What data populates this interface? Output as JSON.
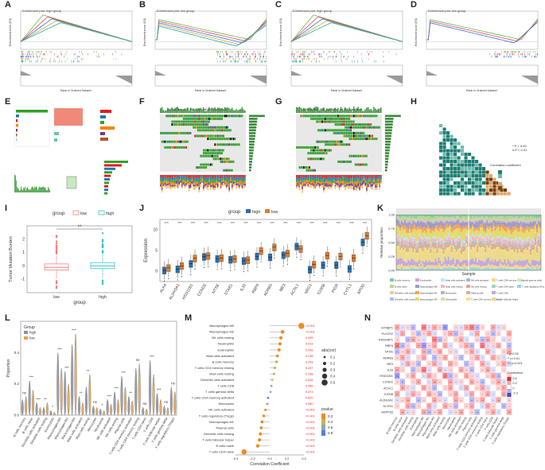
{
  "panels": {
    "A": {
      "label": "A",
      "title": "Enrichment plot: high group"
    },
    "B": {
      "label": "B",
      "title": "Enrichment plot: low group"
    },
    "C": {
      "label": "C",
      "title": "Enrichment plot: high group"
    },
    "D": {
      "label": "D",
      "title": "Enrichment plot: low group"
    },
    "E": {
      "label": "E"
    },
    "F": {
      "label": "F",
      "title": "Altered in 433 (88.73%) of 488 samples"
    },
    "G": {
      "label": "G",
      "title": "Altered in 428 (88.10%) of 486 samples"
    },
    "H": {
      "label": "H"
    },
    "I": {
      "label": "I"
    },
    "J": {
      "label": "J"
    },
    "K": {
      "label": "K"
    },
    "L": {
      "label": "L"
    },
    "M": {
      "label": "M"
    },
    "N": {
      "label": "N"
    }
  },
  "gsea": {
    "ylabel_top": "Enrichment score (ES)",
    "ylabel_bottom": "Ranked list metric",
    "xlabel": "Rank in Ordered Dataset",
    "colors": [
      "#6fb43f",
      "#e34a6f",
      "#3d6fd0",
      "#c8a83b",
      "#23a7a3"
    ]
  },
  "heatmap_H": {
    "legend_title": "Correlation coefficient",
    "p_legend": [
      "* P < 0.05",
      "# P < 0.01"
    ],
    "colors": [
      "#1e7d71",
      "#6fbcae",
      "#ffffff",
      "#dba86a",
      "#7a3f0b"
    ]
  },
  "chart_data": [
    {
      "type": "box",
      "panel": "I",
      "title": "",
      "legend_title": "group",
      "legend": [
        "low",
        "high"
      ],
      "categories": [
        "low",
        "high"
      ],
      "xlabel": "group",
      "ylabel": "Tumor Mutation Burden",
      "ylim": [
        -2,
        3
      ],
      "yticks": [
        "-1",
        "0",
        "1",
        "2"
      ],
      "significance": "**",
      "boxes": [
        {
          "name": "low",
          "q1": -0.3,
          "median": -0.1,
          "q3": 0.15,
          "whisker_low": -0.95,
          "whisker_high": 0.75
        },
        {
          "name": "high",
          "q1": -0.2,
          "median": 0.0,
          "q3": 0.25,
          "whisker_low": -0.85,
          "whisker_high": 0.9
        }
      ],
      "colors": [
        "#f08080",
        "#3cc3c9"
      ]
    },
    {
      "type": "box",
      "panel": "J",
      "legend_title": "group",
      "legend": [
        "high",
        "low"
      ],
      "colors": [
        "#2a6fb0",
        "#e07b29"
      ],
      "ylabel": "Expression",
      "ylim": [
        -2.5,
        12.5
      ],
      "yticks": [
        "0",
        "5",
        "10"
      ],
      "categories": [
        "ALK4",
        "ALDH3A1",
        "HSD11B1",
        "CCND2",
        "NTSE",
        "STAB1",
        "IL33",
        "RBP4",
        "ADRB3",
        "ME3",
        "ACSL1",
        "NRG1",
        "S100B",
        "PIGR",
        "CYTL1",
        "APOD"
      ],
      "significance": [
        "***",
        "***",
        "***",
        "***",
        "***",
        "***",
        "***",
        "***",
        "***",
        "***",
        "***",
        "***",
        "***",
        "***",
        "***",
        "***"
      ],
      "series": [
        {
          "name": "high",
          "medians": [
            0.2,
            0.5,
            1.8,
            3.5,
            3.0,
            2.8,
            2.5,
            3.6,
            3.4,
            3.9,
            6.0,
            0.4,
            1.5,
            1.5,
            0.6,
            7.0
          ]
        },
        {
          "name": "low",
          "medians": [
            0.8,
            1.3,
            3.1,
            3.7,
            3.2,
            3.0,
            2.7,
            4.9,
            5.8,
            4.3,
            5.4,
            1.6,
            3.8,
            3.6,
            3.2,
            8.6
          ]
        }
      ]
    },
    {
      "type": "area",
      "panel": "K",
      "title": "",
      "groups": [
        "high",
        "low"
      ],
      "xlabel": "Sample",
      "ylabel": "Relative proportion",
      "ylim": [
        0,
        1
      ],
      "yticks": [
        "0.00",
        "0.25",
        "0.50",
        "0.75",
        "1.00"
      ],
      "legend": [
        "B cells memory",
        "B cells naive",
        "Dendritic cells activated",
        "Dendritic cells resting",
        "Eosinophils",
        "Macrophages M0",
        "Macrophages M1",
        "Macrophages M2",
        "Mast cells activated",
        "Mast cells resting",
        "Monocytes",
        "Neutrophils",
        "NK cells activated",
        "NK cells resting",
        "Plasma cells",
        "T cells CD4 memory activated",
        "T cells CD4 memory resting",
        "T cells CD4 naive",
        "T cells CD8",
        "T cells follicular helper",
        "T cells gamma delta",
        "T cells regulatory (Tregs)"
      ],
      "colors": [
        "#7fc9a6",
        "#b8d88b",
        "#f4c7a1",
        "#a7c4e0",
        "#d8a1c9",
        "#9e9ac8",
        "#f2a35e",
        "#e6d96b",
        "#c1e3f0",
        "#f7b6c2",
        "#b7b7b7",
        "#cbe39b",
        "#8fc0e8",
        "#e8a2a2",
        "#d2b48c",
        "#f6e27f",
        "#eed98a",
        "#a0d6b4",
        "#c3a6e0",
        "#ffd27f",
        "#d7e8c2",
        "#9fd5d1"
      ]
    },
    {
      "type": "violin",
      "panel": "L",
      "legend_title": "Group",
      "legend": [
        "high",
        "low"
      ],
      "colors": [
        "#8a8fa3",
        "#e3a24c"
      ],
      "ylabel": "Proportion",
      "ylim": [
        0,
        0.6
      ],
      "yticks": [
        "0.0",
        "0.2",
        "0.4"
      ],
      "categories": [
        "B cells memory",
        "B cells naive",
        "Dendritic cells activated",
        "Dendritic cells resting",
        "Eosinophils",
        "Macrophages M0",
        "Macrophages M1",
        "Macrophages M2",
        "Mast cells activated",
        "Mast cells resting",
        "Monocytes",
        "Neutrophils",
        "NK cells activated",
        "NK cells resting",
        "Plasma cells",
        "T cells CD4 memory activated",
        "T cells CD4 memory resting",
        "T cells CD4 naive",
        "T cells CD8",
        "T cells follicular helper",
        "T cells gamma delta",
        "T cells regulatory (Tregs)"
      ],
      "significance": [
        "ns",
        "***",
        "***",
        "**",
        "*",
        "***",
        "***",
        "***",
        "**",
        "**",
        "ns",
        "*",
        "***",
        "***",
        "***",
        "**",
        "ns",
        "ns",
        "***",
        "***",
        "ns",
        "ns"
      ],
      "series": [
        {
          "name": "high",
          "heights": [
            0.1,
            0.22,
            0.08,
            0.05,
            0.03,
            0.4,
            0.28,
            0.45,
            0.12,
            0.18,
            0.06,
            0.04,
            0.1,
            0.15,
            0.25,
            0.12,
            0.3,
            0.05,
            0.35,
            0.14,
            0.06,
            0.18
          ]
        },
        {
          "name": "low",
          "heights": [
            0.12,
            0.16,
            0.05,
            0.08,
            0.02,
            0.3,
            0.2,
            0.52,
            0.08,
            0.26,
            0.05,
            0.03,
            0.07,
            0.1,
            0.18,
            0.09,
            0.33,
            0.04,
            0.26,
            0.1,
            0.05,
            0.15
          ]
        }
      ]
    },
    {
      "type": "scatter",
      "panel": "M",
      "xlabel": "Correlation Coefficient",
      "xlim": [
        -0.4,
        0.4
      ],
      "xticks": [
        "-0.4",
        "-0.2",
        "0.0",
        "0.2",
        "0.4"
      ],
      "size_legend_title": "abs(cor)",
      "size_legend": [
        "0.1",
        "0.2",
        "0.3",
        "0.4",
        "0.5"
      ],
      "color_legend_title": "pvalue",
      "color_legend": [
        "0.2",
        "0.4",
        "0.6",
        "0.8"
      ],
      "categories": [
        "Macrophages M0",
        "Macrophages M2",
        "NK cells resting",
        "Neutrophils",
        "Eosinophils",
        "Mast cells activated",
        "B cells memory",
        "T cells CD4 memory resting",
        "Mast cells resting",
        "Dendritic cells activated",
        "T cells CD8",
        "T cells gamma delta",
        "T cells CD4 memory activated",
        "Monocytes",
        "NK cells activated",
        "T cells regulatory (Tregs)",
        "Macrophages M1",
        "Plasma cells",
        "Dendritic cells resting",
        "T cells follicular helper",
        "B cells naive",
        "T cells CD4 naive"
      ],
      "values": [
        0.37,
        0.15,
        0.13,
        0.12,
        0.11,
        0.09,
        0.08,
        0.06,
        0.05,
        0.03,
        0.02,
        0.01,
        -0.02,
        -0.03,
        -0.05,
        -0.07,
        -0.09,
        -0.1,
        -0.11,
        -0.12,
        -0.14,
        -0.3
      ],
      "pvalue_labels": [
        "<0.001",
        "<0.001",
        "0.005",
        "0.013",
        "0.039",
        "0.136",
        "0.203",
        "0.247",
        "0.298",
        "0.316",
        "0.456",
        "0.573",
        "0.620",
        "0.580",
        "<0.001",
        "<0.001",
        "<0.001",
        "<0.001",
        "<0.001",
        "<0.001",
        "<0.001",
        "<0.001"
      ],
      "pvalue_numeric": [
        0.001,
        0.001,
        0.005,
        0.013,
        0.039,
        0.136,
        0.203,
        0.247,
        0.298,
        0.316,
        0.456,
        0.573,
        0.62,
        0.58,
        0.001,
        0.001,
        0.001,
        0.001,
        0.001,
        0.001,
        0.001,
        0.001
      ]
    },
    {
      "type": "heatmap",
      "panel": "N",
      "rows": [
        "SYNBP1",
        "FLVCR2",
        "RASGRP1",
        "RBP4",
        "NTSE",
        "ADRB3",
        "ME3",
        "IL33",
        "HSD11B1",
        "CCND2",
        "ACSL1",
        "S100B",
        "ALDH3A1",
        "ACSS1",
        "ADIPOQ"
      ],
      "columns": [
        "B cells memory",
        "B cells naive",
        "Dendritic cells activated",
        "Dendritic cells resting",
        "Eosinophils",
        "Macrophages M0",
        "Macrophages M1",
        "Macrophages M2",
        "Mast cells activated",
        "Mast cells resting",
        "Monocytes",
        "Neutrophils",
        "NK cells activated",
        "NK cells resting",
        "Plasma cells",
        "T cells CD4 memory activated",
        "T cells CD4 memory resting",
        "T cells CD4 naive",
        "T cells CD8",
        "T cells follicular helper",
        "T cells gamma delta",
        "T cells regulatory (Tregs)"
      ],
      "legend_title": "Correlation",
      "legend_ticks": [
        "0.6",
        "0.3",
        "0",
        "-0.3"
      ],
      "p_legend": [
        "* p<0.05",
        "** p<0.01",
        "*** p<0.001"
      ],
      "colors": [
        "#d7322c",
        "#f4a6a3",
        "#ffffff",
        "#aab3e6",
        "#3a4ed0"
      ],
      "values": [
        [
          0.2,
          -0.1,
          0.1,
          -0.2,
          0.0,
          0.3,
          -0.1,
          0.2,
          0.1,
          -0.3,
          0.0,
          0.1,
          -0.1,
          0.2,
          0.3,
          -0.2,
          0.1,
          0.0,
          0.2,
          -0.1,
          0.1,
          0.0
        ],
        [
          -0.1,
          0.2,
          0.0,
          0.1,
          -0.2,
          0.1,
          0.2,
          -0.1,
          0.0,
          0.1,
          0.2,
          -0.2,
          0.1,
          0.0,
          -0.1,
          0.2,
          0.0,
          0.1,
          -0.2,
          0.1,
          0.0,
          0.2
        ],
        [
          0.1,
          0.0,
          -0.2,
          0.2,
          0.1,
          -0.1,
          0.0,
          0.3,
          -0.2,
          0.1,
          0.0,
          0.1,
          0.2,
          -0.1,
          0.0,
          0.1,
          -0.2,
          0.2,
          0.1,
          0.0,
          -0.1,
          0.1
        ],
        [
          0.3,
          -0.2,
          0.1,
          0.0,
          0.2,
          -0.3,
          0.1,
          0.2,
          0.0,
          0.2,
          -0.1,
          0.0,
          0.1,
          0.2,
          -0.2,
          0.0,
          0.3,
          -0.1,
          0.1,
          0.2,
          0.0,
          -0.2
        ],
        [
          -0.2,
          0.1,
          0.2,
          -0.1,
          0.0,
          0.2,
          -0.2,
          0.1,
          0.2,
          0.0,
          0.1,
          -0.1,
          0.0,
          0.1,
          0.2,
          -0.1,
          0.0,
          0.2,
          -0.1,
          0.0,
          0.1,
          0.2
        ],
        [
          0.1,
          0.2,
          -0.1,
          0.0,
          0.1,
          0.2,
          0.0,
          -0.2,
          0.1,
          0.2,
          0.0,
          0.1,
          -0.2,
          0.0,
          0.1,
          0.2,
          -0.1,
          0.0,
          0.2,
          0.1,
          -0.1,
          0.0
        ],
        [
          0.0,
          -0.1,
          0.2,
          0.1,
          -0.2,
          0.0,
          0.1,
          0.2,
          -0.1,
          0.0,
          0.2,
          0.1,
          0.0,
          -0.2,
          0.1,
          0.0,
          0.2,
          -0.1,
          0.0,
          0.1,
          0.2,
          -0.1
        ],
        [
          0.2,
          0.1,
          0.0,
          -0.2,
          0.1,
          0.3,
          -0.1,
          0.0,
          0.2,
          -0.1,
          0.1,
          0.0,
          0.2,
          0.1,
          -0.2,
          0.0,
          0.1,
          0.2,
          -0.1,
          0.0,
          0.1,
          0.0
        ],
        [
          -0.3,
          0.0,
          0.1,
          0.2,
          0.0,
          -0.1,
          0.2,
          0.1,
          0.0,
          0.3,
          -0.2,
          0.1,
          0.0,
          0.2,
          0.1,
          -0.1,
          0.0,
          0.1,
          0.2,
          -0.2,
          0.0,
          0.1
        ],
        [
          0.1,
          -0.2,
          0.0,
          0.1,
          0.2,
          0.0,
          -0.1,
          0.2,
          0.1,
          0.0,
          0.2,
          -0.1,
          0.1,
          0.0,
          0.2,
          0.1,
          -0.2,
          0.0,
          0.1,
          0.2,
          -0.1,
          0.0
        ],
        [
          0.0,
          0.2,
          0.1,
          -0.1,
          0.0,
          0.2,
          0.1,
          -0.2,
          0.0,
          0.1,
          0.2,
          0.0,
          -0.1,
          0.2,
          0.0,
          0.1,
          0.2,
          -0.1,
          0.0,
          0.1,
          0.2,
          -0.2
        ],
        [
          0.2,
          0.0,
          -0.1,
          0.2,
          0.1,
          0.0,
          0.2,
          0.1,
          -0.2,
          0.0,
          0.1,
          0.2,
          0.0,
          -0.1,
          0.2,
          0.0,
          0.1,
          0.2,
          -0.1,
          0.0,
          0.2,
          0.1
        ],
        [
          -0.1,
          0.1,
          0.2,
          0.0,
          -0.2,
          0.1,
          0.0,
          0.2,
          0.1,
          -0.1,
          0.0,
          0.2,
          0.1,
          0.0,
          -0.2,
          0.1,
          0.2,
          0.0,
          -0.1,
          0.2,
          0.0,
          0.1
        ],
        [
          0.1,
          0.0,
          0.2,
          -0.2,
          0.1,
          0.0,
          0.2,
          -0.1,
          0.0,
          0.2,
          0.1,
          -0.2,
          0.0,
          0.1,
          0.2,
          0.0,
          -0.1,
          0.2,
          0.1,
          0.0,
          -0.2,
          0.1
        ],
        [
          0.0,
          0.2,
          -0.1,
          0.1,
          0.0,
          0.2,
          -0.2,
          0.1,
          0.2,
          0.0,
          -0.1,
          0.1,
          0.2,
          0.0,
          0.1,
          -0.2,
          0.0,
          0.1,
          0.2,
          -0.1,
          0.0,
          0.2
        ]
      ]
    }
  ]
}
